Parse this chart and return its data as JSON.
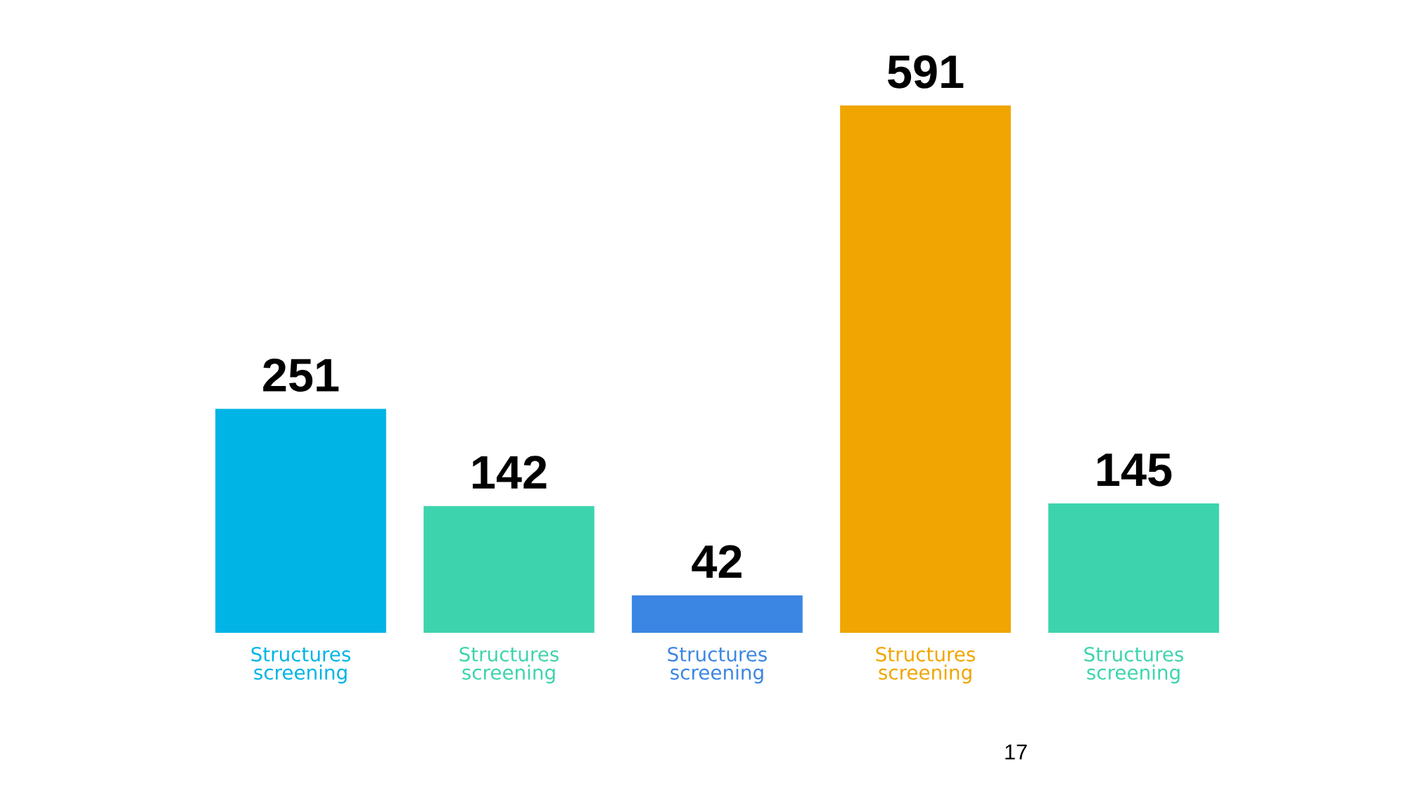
{
  "chart_data": {
    "type": "bar",
    "categories": [
      "Structures screening",
      "Structures screening",
      "Structures screening",
      "Structures screening",
      "Structures screening"
    ],
    "values": [
      251,
      142,
      42,
      591,
      145
    ],
    "colors": [
      "#00b4e6",
      "#3dd4ad",
      "#3b86e3",
      "#f0a500",
      "#3dd4ad"
    ],
    "data_labels": true,
    "tick_labels": "x",
    "annotations": [
      "17"
    ]
  }
}
